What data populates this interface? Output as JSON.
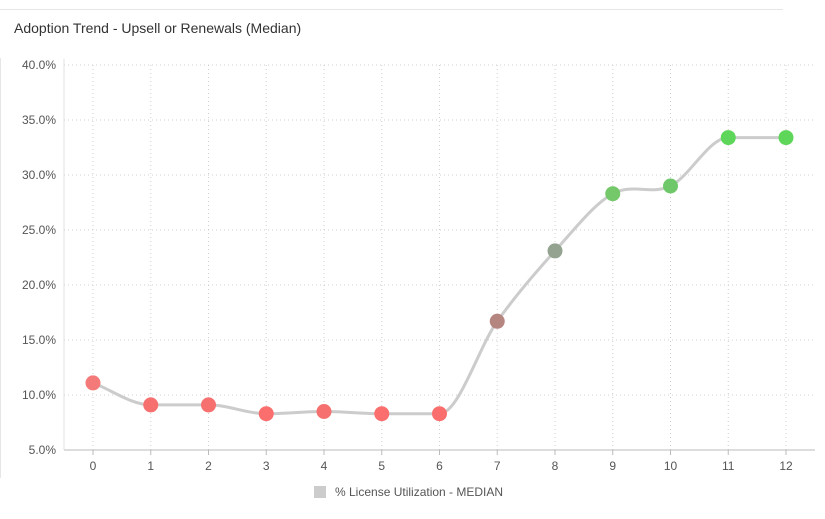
{
  "chart_data": {
    "type": "line",
    "title": "Adoption Trend - Upsell or Renewals (Median)",
    "x": [
      "0",
      "1",
      "2",
      "3",
      "4",
      "5",
      "6",
      "7",
      "8",
      "9",
      "10",
      "11",
      "12"
    ],
    "series": [
      {
        "name": "% License Utilization - MEDIAN",
        "values": [
          11.1,
          9.1,
          9.1,
          8.3,
          8.5,
          8.3,
          8.3,
          16.7,
          23.1,
          28.3,
          29.0,
          33.4,
          33.4
        ],
        "line_color": "#cccccc",
        "point_colors": [
          "#f47a7a",
          "#f77070",
          "#f77070",
          "#fa6e6e",
          "#f77070",
          "#fa6e6e",
          "#fa6e6e",
          "#b5857f",
          "#93a38f",
          "#74c86a",
          "#6ec86a",
          "#5ed65a",
          "#5ed65a"
        ]
      }
    ],
    "yticks": [
      "5.0%",
      "10.0%",
      "15.0%",
      "20.0%",
      "25.0%",
      "30.0%",
      "35.0%",
      "40.0%"
    ],
    "ylim": [
      5,
      40
    ],
    "grid": true,
    "legend": "bottom-center"
  }
}
